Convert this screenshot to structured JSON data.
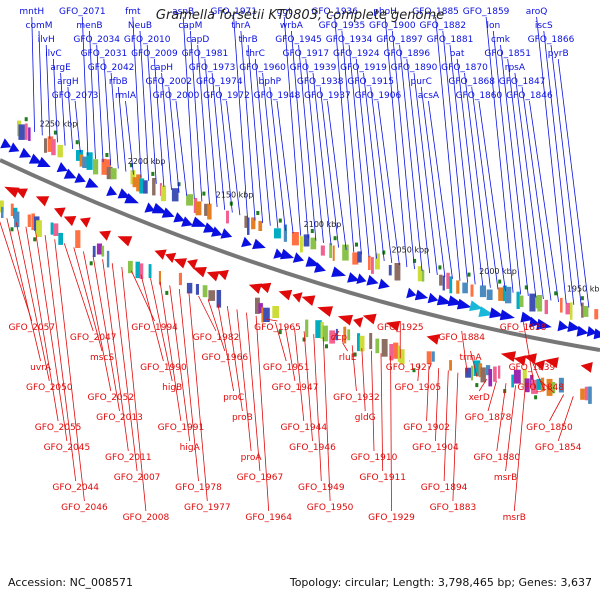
{
  "title": "Gramella forsetii KT0803, complete genome",
  "footer": {
    "accession": "Accession: NC_008571",
    "summary": "Topology: circular; Length: 3,798,465 bp; Genes: 3,637"
  },
  "colors": {
    "forward": "#0a10e0",
    "reverse": "#e00a0a",
    "forward_highlight": "#19b7d8",
    "backbone": "#777777",
    "tick": "#1f7f1f"
  },
  "scale": [
    "2250 kbp",
    "2200 kbp",
    "2150 kbp",
    "2100 kbp",
    "2050 kbp",
    "2000 kbp",
    "1950 kbp"
  ],
  "top_labels": [
    "mntH",
    "comM",
    "ilvH",
    "ilvC",
    "argE",
    "argH",
    "GFO_2073",
    "GFO_2071",
    "menB",
    "GFO_2034",
    "GFO_2031",
    "GFO_2042",
    "rfbB",
    "rmlA",
    "fmt",
    "NeuB",
    "GFO_2010",
    "GFO_2009",
    "capH",
    "GFO_2002",
    "GFO_2000",
    "asnB",
    "capM",
    "capD",
    "GFO_1981",
    "GFO_1973",
    "GFO_1974",
    "GFO_1972",
    "GFO_1971",
    "thrA",
    "thrB",
    "thrC",
    "GFO_1960",
    "bphP",
    "GFO_1948",
    "ggt",
    "wrbA",
    "GFO_1945",
    "GFO_1917",
    "GFO_1939",
    "GFO_1938",
    "GFO_1937",
    "GFO_1936",
    "GFO_1935",
    "GFO_1934",
    "GFO_1924",
    "GFO_1919",
    "GFO_1915",
    "GFO_1906",
    "phoH",
    "GFO_1900",
    "GFO_1897",
    "GFO_1896",
    "GFO_1890",
    "purC",
    "acsA",
    "GFO_1885",
    "GFO_1882",
    "GFO_1881",
    "oat",
    "GFO_1870",
    "GFO_1868",
    "GFO_1860",
    "GFO_1859",
    "lon",
    "cmk",
    "GFO_1851",
    "rpsA",
    "GFO_1847",
    "GFO_1846",
    "aroQ",
    "iscS",
    "GFO_1866",
    "pyrB"
  ],
  "bottom_labels": [
    "GFO_2057",
    "uvrA",
    "GFO_2050",
    "GFO_2055",
    "GFO_2045",
    "GFO_2044",
    "GFO_2046",
    "GFO_2047",
    "mscS",
    "GFO_2052",
    "GFO_2013",
    "GFO_2011",
    "GFO_2007",
    "GFO_2008",
    "GFO_1994",
    "GFO_1990",
    "higB",
    "GFO_1991",
    "higA",
    "GFO_1978",
    "GFO_1977",
    "GFO_1982",
    "GFO_1966",
    "proC",
    "proB",
    "proA",
    "GFO_1967",
    "GFO_1964",
    "GFO_1965",
    "GFO_1951",
    "GFO_1947",
    "GFO_1944",
    "GFO_1946",
    "GFO_1949",
    "GFO_1950",
    "dcp",
    "rluE",
    "GFO_1932",
    "gldG",
    "GFO_1910",
    "GFO_1911",
    "GFO_1929",
    "GFO_1925",
    "GFO_1927",
    "GFO_1905",
    "GFO_1902",
    "GFO_1904",
    "GFO_1894",
    "GFO_1883",
    "GFO_1884",
    "trmA",
    "xerD",
    "GFO_1878",
    "GFO_1880",
    "msrB",
    "msrB",
    "GFO_1838",
    "GFO_1839",
    "GFO_1848",
    "GFO_1850",
    "GFO_1854"
  ]
}
